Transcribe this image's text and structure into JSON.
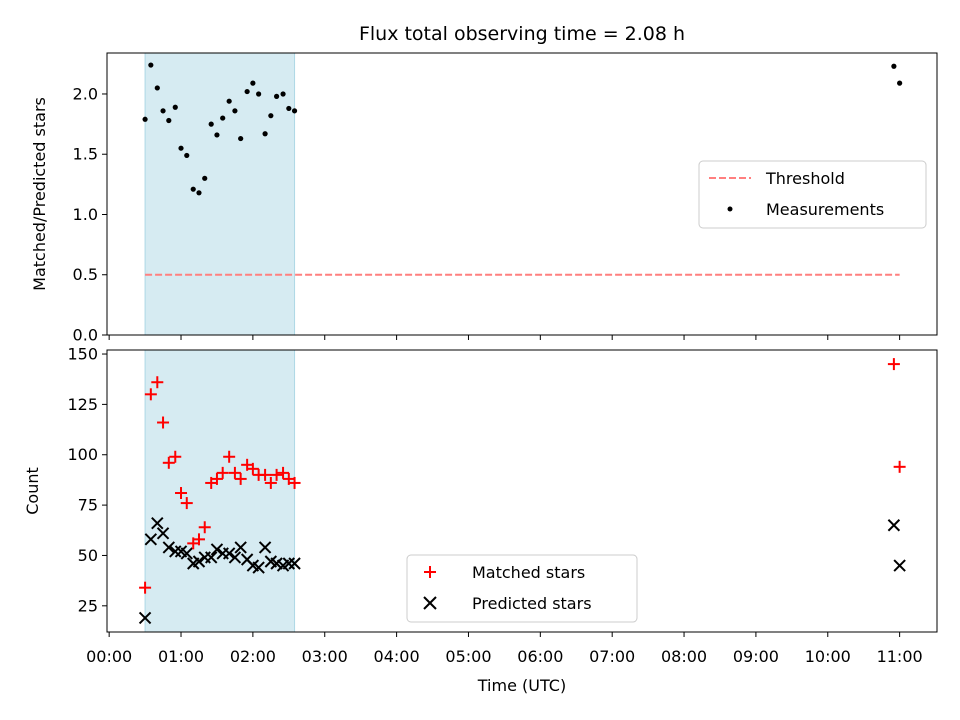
{
  "chart_data": [
    {
      "type": "scatter",
      "title": "Flux total observing time = 2.08 h",
      "xlabel": "",
      "ylabel": "Matched/Predicted stars",
      "xlim": [
        -0.03,
        11.52
      ],
      "ylim": [
        0.0,
        2.34
      ],
      "yticks": [
        0.0,
        0.5,
        1.0,
        1.5,
        2.0
      ],
      "ytick_labels": [
        "0.0",
        "0.5",
        "1.0",
        "1.5",
        "2.0"
      ],
      "shaded_x": [
        0.5,
        2.58
      ],
      "legend_position": "center-right",
      "series": [
        {
          "name": "Threshold",
          "kind": "dashed-line",
          "color": "#ff7f7f",
          "x": [
            0.5,
            11.0
          ],
          "y": [
            0.5,
            0.5
          ]
        },
        {
          "name": "Measurements",
          "kind": "points",
          "color": "#000000",
          "x": [
            0.5,
            0.58,
            0.67,
            0.75,
            0.83,
            0.92,
            1.0,
            1.08,
            1.17,
            1.25,
            1.33,
            1.42,
            1.5,
            1.58,
            1.67,
            1.75,
            1.83,
            1.92,
            2.0,
            2.08,
            2.17,
            2.25,
            2.33,
            2.42,
            2.5,
            2.58,
            10.92,
            11.0
          ],
          "y": [
            1.79,
            2.24,
            2.05,
            1.86,
            1.78,
            1.89,
            1.55,
            1.49,
            1.21,
            1.18,
            1.3,
            1.75,
            1.66,
            1.8,
            1.94,
            1.86,
            1.63,
            2.02,
            2.09,
            2.0,
            1.67,
            1.82,
            1.98,
            2.0,
            1.88,
            1.86,
            2.23,
            2.09
          ]
        }
      ]
    },
    {
      "type": "scatter",
      "title": "",
      "xlabel": "Time (UTC)",
      "ylabel": "Count",
      "xlim": [
        -0.03,
        11.52
      ],
      "ylim": [
        12.0,
        152.0
      ],
      "yticks": [
        25,
        50,
        75,
        100,
        125,
        150
      ],
      "ytick_labels": [
        "25",
        "50",
        "75",
        "100",
        "125",
        "150"
      ],
      "xticks": [
        0,
        1,
        2,
        3,
        4,
        5,
        6,
        7,
        8,
        9,
        10,
        11
      ],
      "xtick_labels": [
        "00:00",
        "01:00",
        "02:00",
        "03:00",
        "04:00",
        "05:00",
        "06:00",
        "07:00",
        "08:00",
        "09:00",
        "10:00",
        "11:00"
      ],
      "shaded_x": [
        0.5,
        2.58
      ],
      "legend_position": "lower center",
      "series": [
        {
          "name": "Matched stars",
          "marker": "plus",
          "color": "#ff0000",
          "x": [
            0.5,
            0.58,
            0.67,
            0.75,
            0.83,
            0.92,
            1.0,
            1.08,
            1.17,
            1.25,
            1.33,
            1.42,
            1.5,
            1.58,
            1.67,
            1.75,
            1.83,
            1.92,
            2.0,
            2.08,
            2.17,
            2.25,
            2.33,
            2.42,
            2.5,
            2.58,
            10.92,
            11.0
          ],
          "y": [
            34,
            130,
            136,
            116,
            96,
            99,
            81,
            76,
            56,
            58,
            64,
            86,
            88,
            91,
            99,
            91,
            88,
            95,
            93,
            90,
            90,
            86,
            90,
            91,
            88,
            86,
            145,
            94
          ]
        },
        {
          "name": "Predicted stars",
          "marker": "x",
          "color": "#000000",
          "x": [
            0.5,
            0.58,
            0.67,
            0.75,
            0.83,
            0.92,
            1.0,
            1.08,
            1.17,
            1.25,
            1.33,
            1.42,
            1.5,
            1.58,
            1.67,
            1.75,
            1.83,
            1.92,
            2.0,
            2.08,
            2.17,
            2.25,
            2.33,
            2.42,
            2.5,
            2.58,
            10.92,
            11.0
          ],
          "y": [
            19,
            58,
            66,
            61,
            54,
            52,
            52,
            51,
            46,
            47,
            49,
            49,
            53,
            51,
            51,
            49,
            54,
            48,
            45,
            44,
            54,
            47,
            46,
            45,
            46,
            46,
            65,
            45
          ]
        }
      ]
    }
  ]
}
